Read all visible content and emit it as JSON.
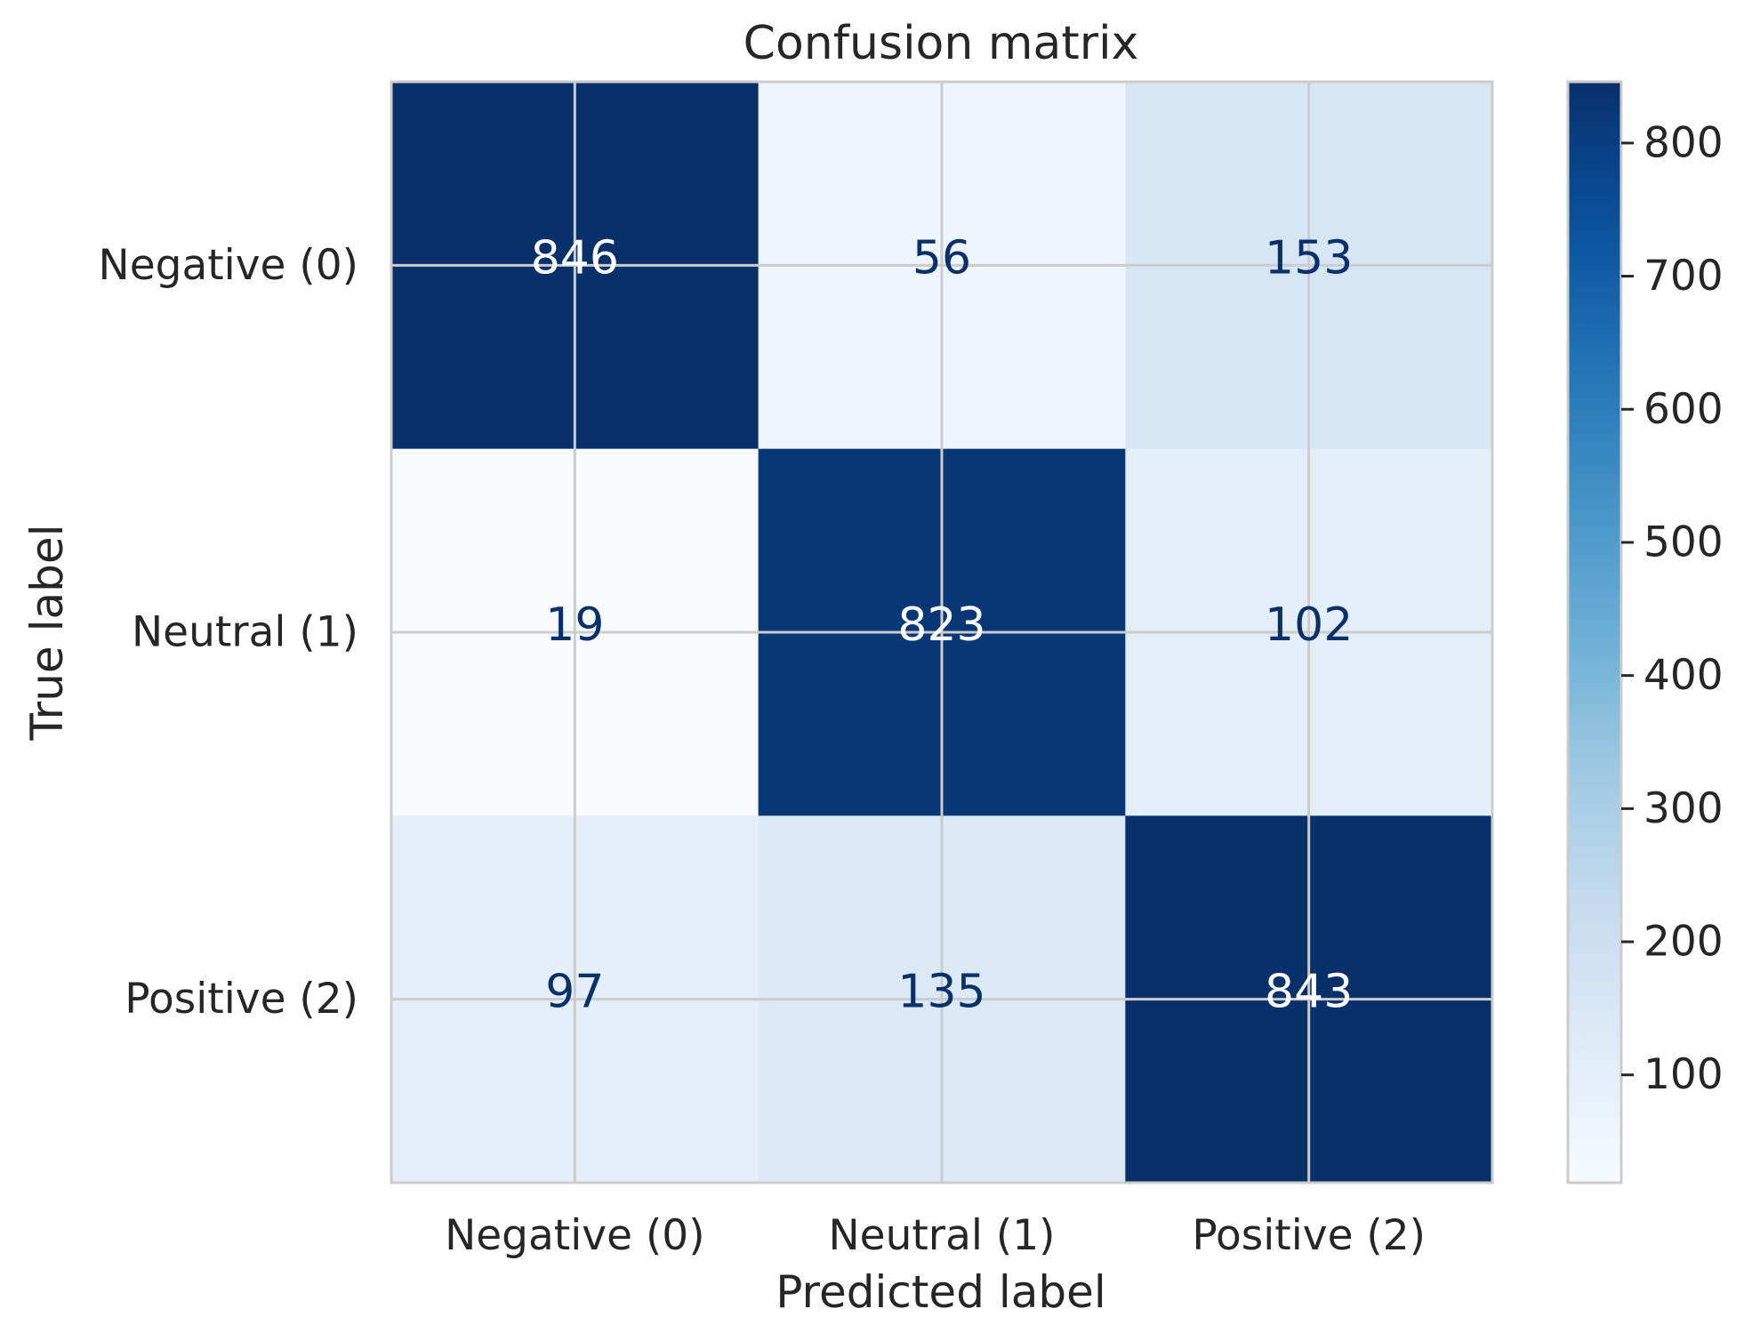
{
  "chart_data": {
    "type": "heatmap",
    "title": "Confusion matrix",
    "xlabel": "Predicted label",
    "ylabel": "True label",
    "x_categories": [
      "Negative (0)",
      "Neutral (1)",
      "Positive (2)"
    ],
    "y_categories": [
      "Negative (0)",
      "Neutral (1)",
      "Positive (2)"
    ],
    "matrix": [
      [
        846,
        56,
        153
      ],
      [
        19,
        823,
        102
      ],
      [
        97,
        135,
        843
      ]
    ],
    "value_range": [
      19,
      846
    ],
    "colormap": "Blues",
    "colorbar": {
      "ticks": [
        100,
        200,
        300,
        400,
        500,
        600,
        700,
        800
      ],
      "tick_labels": [
        "100",
        "200",
        "300",
        "400",
        "500",
        "600",
        "700",
        "800"
      ]
    },
    "grid": true,
    "colors": {
      "grid_line": "#cccccc",
      "text": "#262626",
      "annot_dark": "#08306b",
      "annot_light": "#ffffff",
      "background": "#ffffff"
    }
  }
}
